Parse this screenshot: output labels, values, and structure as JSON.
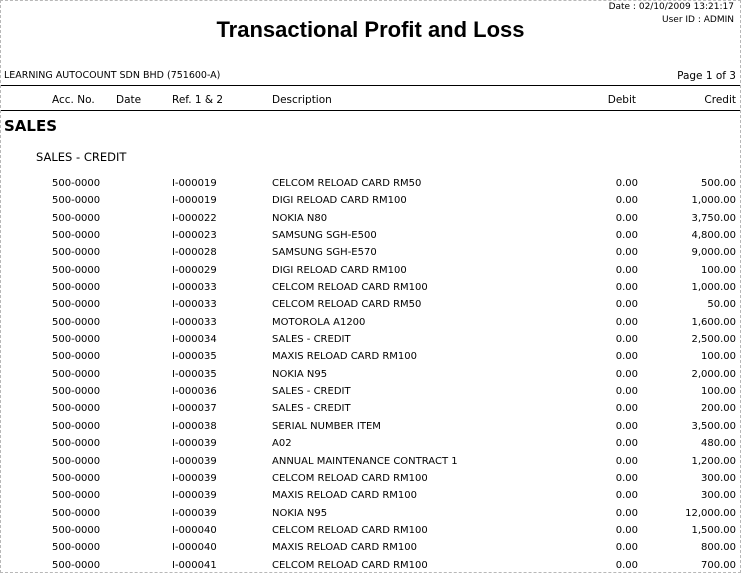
{
  "header": {
    "date_label": "Date :",
    "date_value": "02/10/2009 13:21:17",
    "user_label": "User ID :",
    "user_value": "ADMIN",
    "title": "Transactional Profit and Loss",
    "company": "LEARNING AUTOCOUNT SDN BHD (751600-A)",
    "page_info": "Page 1 of 3"
  },
  "columns": {
    "acc_no": "Acc. No.",
    "date": "Date",
    "ref": "Ref. 1 & 2",
    "description": "Description",
    "debit": "Debit",
    "credit": "Credit"
  },
  "section": {
    "title": "SALES",
    "subtitle": "SALES - CREDIT"
  },
  "rows": [
    {
      "acc": "500-0000",
      "ref": "I-000019",
      "desc": "CELCOM RELOAD CARD RM50",
      "debit": "0.00",
      "credit": "500.00"
    },
    {
      "acc": "500-0000",
      "ref": "I-000019",
      "desc": "DIGI RELOAD CARD RM100",
      "debit": "0.00",
      "credit": "1,000.00"
    },
    {
      "acc": "500-0000",
      "ref": "I-000022",
      "desc": "NOKIA N80",
      "debit": "0.00",
      "credit": "3,750.00"
    },
    {
      "acc": "500-0000",
      "ref": "I-000023",
      "desc": "SAMSUNG SGH-E500",
      "debit": "0.00",
      "credit": "4,800.00"
    },
    {
      "acc": "500-0000",
      "ref": "I-000028",
      "desc": "SAMSUNG SGH-E570",
      "debit": "0.00",
      "credit": "9,000.00"
    },
    {
      "acc": "500-0000",
      "ref": "I-000029",
      "desc": "DIGI RELOAD CARD RM100",
      "debit": "0.00",
      "credit": "100.00"
    },
    {
      "acc": "500-0000",
      "ref": "I-000033",
      "desc": "CELCOM RELOAD CARD RM100",
      "debit": "0.00",
      "credit": "1,000.00"
    },
    {
      "acc": "500-0000",
      "ref": "I-000033",
      "desc": "CELCOM RELOAD CARD RM50",
      "debit": "0.00",
      "credit": "50.00"
    },
    {
      "acc": "500-0000",
      "ref": "I-000033",
      "desc": "MOTOROLA A1200",
      "debit": "0.00",
      "credit": "1,600.00"
    },
    {
      "acc": "500-0000",
      "ref": "I-000034",
      "desc": "SALES - CREDIT",
      "debit": "0.00",
      "credit": "2,500.00"
    },
    {
      "acc": "500-0000",
      "ref": "I-000035",
      "desc": "MAXIS RELOAD CARD RM100",
      "debit": "0.00",
      "credit": "100.00"
    },
    {
      "acc": "500-0000",
      "ref": "I-000035",
      "desc": "NOKIA N95",
      "debit": "0.00",
      "credit": "2,000.00"
    },
    {
      "acc": "500-0000",
      "ref": "I-000036",
      "desc": "SALES - CREDIT",
      "debit": "0.00",
      "credit": "100.00"
    },
    {
      "acc": "500-0000",
      "ref": "I-000037",
      "desc": "SALES - CREDIT",
      "debit": "0.00",
      "credit": "200.00"
    },
    {
      "acc": "500-0000",
      "ref": "I-000038",
      "desc": "SERIAL NUMBER ITEM",
      "debit": "0.00",
      "credit": "3,500.00"
    },
    {
      "acc": "500-0000",
      "ref": "I-000039",
      "desc": "A02",
      "debit": "0.00",
      "credit": "480.00"
    },
    {
      "acc": "500-0000",
      "ref": "I-000039",
      "desc": "ANNUAL MAINTENANCE CONTRACT 1",
      "debit": "0.00",
      "credit": "1,200.00"
    },
    {
      "acc": "500-0000",
      "ref": "I-000039",
      "desc": "CELCOM RELOAD CARD RM100",
      "debit": "0.00",
      "credit": "300.00"
    },
    {
      "acc": "500-0000",
      "ref": "I-000039",
      "desc": "MAXIS RELOAD CARD RM100",
      "debit": "0.00",
      "credit": "300.00"
    },
    {
      "acc": "500-0000",
      "ref": "I-000039",
      "desc": "NOKIA N95",
      "debit": "0.00",
      "credit": "12,000.00"
    },
    {
      "acc": "500-0000",
      "ref": "I-000040",
      "desc": "CELCOM RELOAD CARD RM100",
      "debit": "0.00",
      "credit": "1,500.00"
    },
    {
      "acc": "500-0000",
      "ref": "I-000040",
      "desc": "MAXIS RELOAD CARD RM100",
      "debit": "0.00",
      "credit": "800.00"
    },
    {
      "acc": "500-0000",
      "ref": "I-000041",
      "desc": "CELCOM RELOAD CARD RM100",
      "debit": "0.00",
      "credit": "700.00"
    }
  ]
}
